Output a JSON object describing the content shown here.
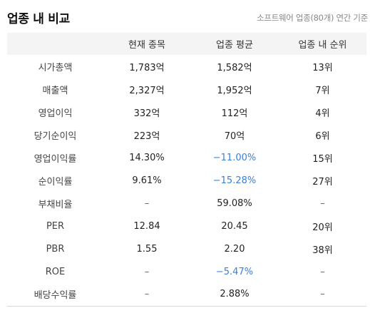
{
  "header": {
    "title": "업종 내 비교",
    "subtitle": "소프트웨어 업종(80개) 연간 기준"
  },
  "table": {
    "columns": [
      "",
      "현재 종목",
      "업종 평균",
      "업종 내 순위"
    ],
    "rows": [
      {
        "label": "시가총액",
        "current": "1,783억",
        "average": "1,582억",
        "rank": "13위"
      },
      {
        "label": "매출액",
        "current": "2,327억",
        "average": "1,952억",
        "rank": "7위"
      },
      {
        "label": "영업이익",
        "current": "332억",
        "average": "112억",
        "rank": "4위"
      },
      {
        "label": "당기순이익",
        "current": "223억",
        "average": "70억",
        "rank": "6위"
      },
      {
        "label": "영업이익률",
        "current": "14.30%",
        "average": "−11.00%",
        "rank": "15위"
      },
      {
        "label": "순이익률",
        "current": "9.61%",
        "average": "−15.28%",
        "rank": "27위"
      },
      {
        "label": "부채비율",
        "current": "–",
        "average": "59.08%",
        "rank": "–"
      },
      {
        "label": "PER",
        "current": "12.84",
        "average": "20.45",
        "rank": "20위"
      },
      {
        "label": "PBR",
        "current": "1.55",
        "average": "2.20",
        "rank": "38위"
      },
      {
        "label": "ROE",
        "current": "–",
        "average": "−5.47%",
        "rank": "–"
      },
      {
        "label": "배당수익률",
        "current": "–",
        "average": "2.88%",
        "rank": "–"
      }
    ]
  },
  "colors": {
    "negative": "#3b7fd9",
    "header_bg": "#f4f4f4"
  }
}
